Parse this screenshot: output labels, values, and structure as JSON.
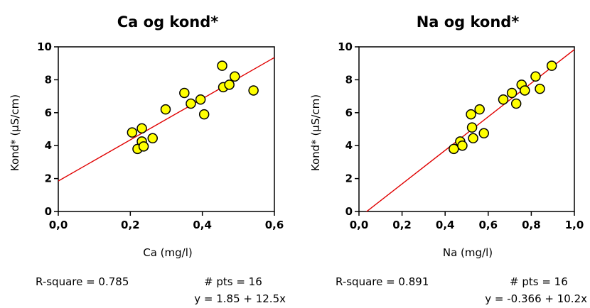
{
  "chart_data": [
    {
      "type": "scatter",
      "title": "Ca og kond*",
      "xlabel": "Ca (mg/l)",
      "ylabel": "Kond*  (µS/cm)",
      "xlim": [
        0.0,
        0.6
      ],
      "ylim": [
        0,
        10
      ],
      "x_ticks": [
        "0,0",
        "0,2",
        "0,4",
        "0,6"
      ],
      "y_ticks": [
        "0",
        "2",
        "4",
        "6",
        "8",
        "10"
      ],
      "points": [
        {
          "x": 0.205,
          "y": 4.8
        },
        {
          "x": 0.22,
          "y": 3.8
        },
        {
          "x": 0.232,
          "y": 5.05
        },
        {
          "x": 0.232,
          "y": 4.25
        },
        {
          "x": 0.237,
          "y": 3.95
        },
        {
          "x": 0.262,
          "y": 4.45
        },
        {
          "x": 0.298,
          "y": 6.2
        },
        {
          "x": 0.35,
          "y": 7.2
        },
        {
          "x": 0.368,
          "y": 6.55
        },
        {
          "x": 0.395,
          "y": 6.8
        },
        {
          "x": 0.405,
          "y": 5.9
        },
        {
          "x": 0.455,
          "y": 8.85
        },
        {
          "x": 0.458,
          "y": 7.55
        },
        {
          "x": 0.475,
          "y": 7.7
        },
        {
          "x": 0.49,
          "y": 8.2
        },
        {
          "x": 0.542,
          "y": 7.35
        }
      ],
      "fit": {
        "intercept": 1.85,
        "slope": 12.5
      },
      "r_square_text": "R-square = 0.785",
      "pts_text": "# pts = 16",
      "equation_text": "y = 1.85 + 12.5x",
      "marker_color": "#ffff00",
      "fit_color": "#e00000"
    },
    {
      "type": "scatter",
      "title": "Na og kond*",
      "xlabel": "Na (mg/l)",
      "ylabel": "Kond*  (µS/cm)",
      "xlim": [
        0.0,
        1.0
      ],
      "ylim": [
        0,
        10
      ],
      "x_ticks": [
        "0,0",
        "0,2",
        "0,4",
        "0,6",
        "0,8",
        "1,0"
      ],
      "y_ticks": [
        "0",
        "2",
        "4",
        "6",
        "8",
        "10"
      ],
      "points": [
        {
          "x": 0.44,
          "y": 3.8
        },
        {
          "x": 0.47,
          "y": 4.25
        },
        {
          "x": 0.48,
          "y": 4.0
        },
        {
          "x": 0.52,
          "y": 5.9
        },
        {
          "x": 0.525,
          "y": 5.1
        },
        {
          "x": 0.53,
          "y": 4.45
        },
        {
          "x": 0.56,
          "y": 6.2
        },
        {
          "x": 0.58,
          "y": 4.75
        },
        {
          "x": 0.67,
          "y": 6.8
        },
        {
          "x": 0.71,
          "y": 7.2
        },
        {
          "x": 0.73,
          "y": 6.55
        },
        {
          "x": 0.755,
          "y": 7.7
        },
        {
          "x": 0.77,
          "y": 7.35
        },
        {
          "x": 0.82,
          "y": 8.2
        },
        {
          "x": 0.84,
          "y": 7.45
        },
        {
          "x": 0.895,
          "y": 8.85
        }
      ],
      "fit": {
        "intercept": -0.366,
        "slope": 10.2
      },
      "r_square_text": "R-square = 0.891",
      "pts_text": "# pts = 16",
      "equation_text": "y = -0.366 + 10.2x",
      "marker_color": "#ffff00",
      "fit_color": "#e00000"
    }
  ]
}
